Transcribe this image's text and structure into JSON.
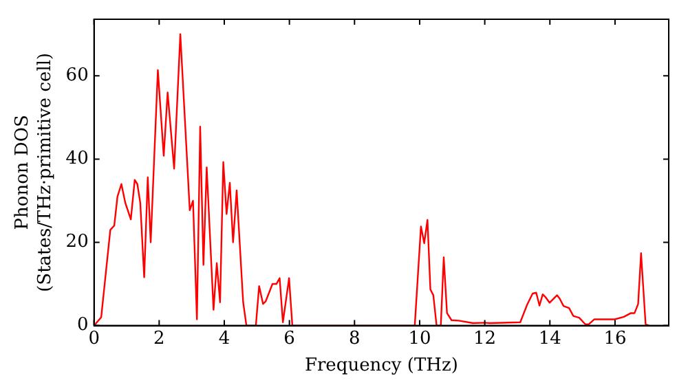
{
  "chart_data": {
    "type": "line",
    "xlabel": "Frequency (THz)",
    "ylabel": "Phonon DOS\n(States/THz·primitive cell)",
    "xlim": [
      0,
      17.65
    ],
    "ylim": [
      0,
      73.6
    ],
    "xticks": [
      0,
      2,
      4,
      6,
      8,
      10,
      12,
      14,
      16
    ],
    "yticks": [
      0,
      20,
      40,
      60
    ],
    "grid": false,
    "legend": false,
    "marker": "none",
    "line_style": "solid",
    "series": [
      {
        "color": "#ff0000",
        "x": [
          0,
          0.22,
          0.5,
          0.62,
          0.72,
          0.84,
          0.96,
          1.13,
          1.25,
          1.33,
          1.42,
          1.54,
          1.65,
          1.74,
          1.96,
          2.14,
          2.26,
          2.46,
          2.65,
          2.94,
          3.04,
          3.16,
          3.26,
          3.36,
          3.46,
          3.67,
          3.77,
          3.87,
          3.97,
          4.07,
          4.17,
          4.27,
          4.38,
          4.58,
          4.68,
          4.97,
          5.07,
          5.19,
          5.27,
          5.48,
          5.6,
          5.7,
          5.8,
          5.99,
          6.09,
          9.85,
          10.04,
          10.14,
          10.24,
          10.33,
          10.42,
          10.52,
          10.65,
          10.74,
          10.84,
          10.98,
          11.2,
          11.64,
          12,
          12.15,
          13.09,
          13.3,
          13.47,
          13.58,
          13.68,
          13.78,
          13.87,
          13.99,
          14.22,
          14.3,
          14.42,
          14.59,
          14.72,
          14.9,
          15.09,
          15.19,
          15.36,
          15.99,
          16.27,
          16.49,
          16.6,
          16.71,
          16.8,
          16.94,
          17.05
        ],
        "values": [
          0,
          2,
          23,
          24,
          31,
          34,
          29.5,
          25.5,
          35,
          34,
          29.5,
          11.6,
          35.6,
          20,
          61.4,
          40.8,
          56,
          37.7,
          70,
          27.7,
          30,
          1.5,
          47.8,
          14.6,
          38,
          3.8,
          15,
          5.6,
          39.3,
          26.8,
          34.3,
          20,
          32.5,
          5.6,
          0,
          0,
          9.5,
          5.2,
          5.8,
          10,
          10,
          11.4,
          0.8,
          11.4,
          0,
          0,
          23.8,
          19.8,
          25.4,
          8.7,
          7.3,
          0,
          0,
          16.4,
          3,
          1.3,
          1.2,
          0.6,
          0.7,
          0.6,
          0.8,
          5,
          7.7,
          7.9,
          4.8,
          7.5,
          6.8,
          5.5,
          7.3,
          6.5,
          4.7,
          4.2,
          2.3,
          1.9,
          0.3,
          0.3,
          1.5,
          1.5,
          2.1,
          3,
          3,
          5.2,
          17.4,
          0.3,
          0
        ]
      }
    ]
  }
}
